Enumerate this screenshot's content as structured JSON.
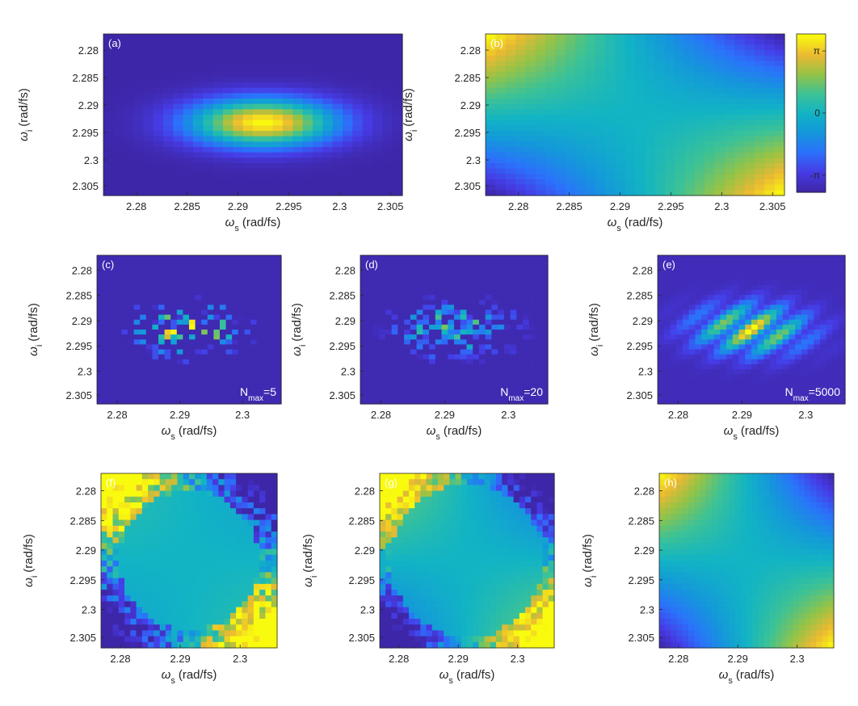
{
  "chart_data": [
    {
      "panel": "(a)",
      "type": "heatmap",
      "xlabel": "ω_s (rad/fs)",
      "ylabel": "ω_i (rad/fs)",
      "xlim": [
        2.2765,
        2.3055
      ],
      "ylim": [
        2.2765,
        2.3055
      ],
      "xticks": [
        "2.28",
        "2.285",
        "2.29",
        "2.295",
        "2.3",
        "2.305"
      ],
      "yticks": [
        "2.28",
        "2.285",
        "2.29",
        "2.295",
        "2.3",
        "2.305"
      ],
      "field": "joint spectral amplitude (gaussian, peak near 2.2915, 2.2915)",
      "annotation": ""
    },
    {
      "panel": "(b)",
      "type": "heatmap",
      "xlabel": "ω_s (rad/fs)",
      "ylabel": "ω_i (rad/fs)",
      "xlim": [
        2.2765,
        2.3055
      ],
      "ylim": [
        2.2765,
        2.3055
      ],
      "xticks": [
        "2.28",
        "2.285",
        "2.29",
        "2.295",
        "2.3",
        "2.305"
      ],
      "yticks": [
        "2.28",
        "2.285",
        "2.29",
        "2.295",
        "2.3",
        "2.305"
      ],
      "field": "phase, saddle shaped",
      "colorbar": {
        "ticks": [
          "π",
          "0",
          "-π"
        ],
        "range": [
          -4,
          4
        ]
      },
      "annotation": ""
    },
    {
      "panel": "(c)",
      "type": "heatmap",
      "xlabel": "ω_s (rad/fs)",
      "ylabel": "ω_i (rad/fs)",
      "xlim": [
        2.2765,
        2.3055
      ],
      "ylim": [
        2.2765,
        2.3055
      ],
      "xticks": [
        "2.28",
        "2.29",
        "2.3"
      ],
      "yticks": [
        "2.28",
        "2.285",
        "2.29",
        "2.295",
        "2.3",
        "2.305"
      ],
      "field": "sampled joint spectral amplitude",
      "annotation": {
        "base": "N",
        "sub": "max",
        "suffix": "=5"
      }
    },
    {
      "panel": "(d)",
      "type": "heatmap",
      "xlabel": "ω_s (rad/fs)",
      "ylabel": "ω_i (rad/fs)",
      "xlim": [
        2.2765,
        2.3055
      ],
      "ylim": [
        2.2765,
        2.3055
      ],
      "xticks": [
        "2.28",
        "2.29",
        "2.3"
      ],
      "yticks": [
        "2.28",
        "2.285",
        "2.29",
        "2.295",
        "2.3",
        "2.305"
      ],
      "field": "sampled joint spectral amplitude",
      "annotation": {
        "base": "N",
        "sub": "max",
        "suffix": "=20"
      }
    },
    {
      "panel": "(e)",
      "type": "heatmap",
      "xlabel": "ω_s (rad/fs)",
      "ylabel": "ω_i (rad/fs)",
      "xlim": [
        2.2765,
        2.3055
      ],
      "ylim": [
        2.2765,
        2.3055
      ],
      "xticks": [
        "2.28",
        "2.29",
        "2.3"
      ],
      "yticks": [
        "2.28",
        "2.285",
        "2.29",
        "2.295",
        "2.3",
        "2.305"
      ],
      "field": "sampled joint spectral amplitude",
      "annotation": {
        "base": "N",
        "sub": "max",
        "suffix": "=5000"
      }
    },
    {
      "panel": "(f)",
      "type": "heatmap",
      "xlabel": "ω_s (rad/fs)",
      "ylabel": "ω_i (rad/fs)",
      "xlim": [
        2.2765,
        2.3055
      ],
      "ylim": [
        2.2765,
        2.3055
      ],
      "xticks": [
        "2.28",
        "2.29",
        "2.3"
      ],
      "yticks": [
        "2.28",
        "2.285",
        "2.29",
        "2.295",
        "2.3",
        "2.305"
      ],
      "field": "reconstructed phase",
      "annotation": ""
    },
    {
      "panel": "(g)",
      "type": "heatmap",
      "xlabel": "ω_s (rad/fs)",
      "ylabel": "ω_i (rad/fs)",
      "xlim": [
        2.2765,
        2.3055
      ],
      "ylim": [
        2.2765,
        2.3055
      ],
      "xticks": [
        "2.28",
        "2.29",
        "2.3"
      ],
      "yticks": [
        "2.28",
        "2.285",
        "2.29",
        "2.295",
        "2.3",
        "2.305"
      ],
      "field": "reconstructed phase",
      "annotation": ""
    },
    {
      "panel": "(h)",
      "type": "heatmap",
      "xlabel": "ω_s (rad/fs)",
      "ylabel": "ω_i (rad/fs)",
      "xlim": [
        2.2765,
        2.3055
      ],
      "ylim": [
        2.2765,
        2.3055
      ],
      "xticks": [
        "2.28",
        "2.29",
        "2.3"
      ],
      "yticks": [
        "2.28",
        "2.285",
        "2.29",
        "2.295",
        "2.3",
        "2.305"
      ],
      "field": "reconstructed phase",
      "annotation": ""
    }
  ],
  "colors": {
    "colormap": "parula",
    "low": "#3e26a8",
    "mid": "#2eb7a8",
    "high": "#f9fb0e",
    "axes_text": "#262626"
  }
}
